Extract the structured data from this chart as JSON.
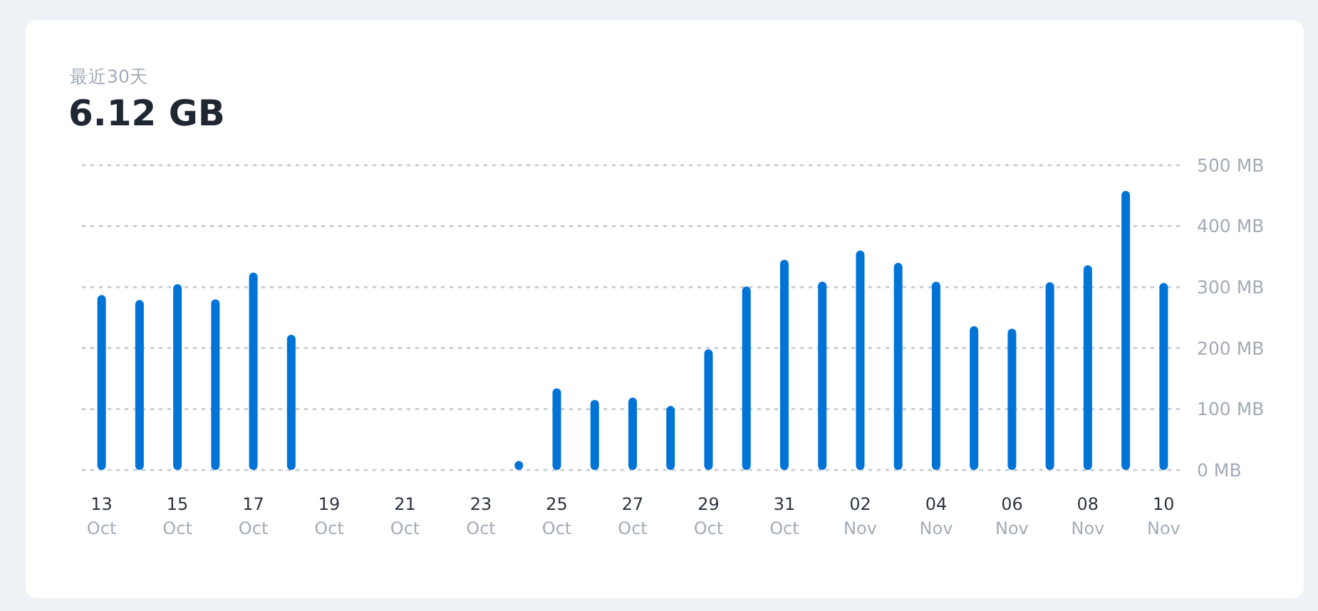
{
  "chart_data": {
    "type": "bar",
    "title": "6.12 GB",
    "subtitle": "最近30天",
    "categories": [
      "13 Oct",
      null,
      "15 Oct",
      null,
      "17 Oct",
      null,
      "19 Oct",
      null,
      "21 Oct",
      null,
      "23 Oct",
      null,
      "25 Oct",
      null,
      "27 Oct",
      null,
      "29 Oct",
      null,
      "31 Oct",
      null,
      "02 Nov",
      null,
      "04 Nov",
      null,
      "06 Nov",
      null,
      "08 Nov",
      null,
      "10 Nov"
    ],
    "values": [
      287,
      279,
      305,
      280,
      324,
      222,
      0,
      0,
      0,
      0,
      0,
      15,
      134,
      115,
      119,
      105,
      198,
      301,
      345,
      309,
      360,
      340,
      309,
      236,
      232,
      308,
      336,
      458,
      307
    ],
    "color": "#0073d6",
    "ylim": [
      0,
      500
    ],
    "yticks": [
      {
        "value": 0,
        "label": "0 MB"
      },
      {
        "value": 100,
        "label": "100 MB"
      },
      {
        "value": 200,
        "label": "200 MB"
      },
      {
        "value": 300,
        "label": "300 MB"
      },
      {
        "value": 400,
        "label": "400 MB"
      },
      {
        "value": 500,
        "label": "500 MB"
      }
    ],
    "grid": "y"
  }
}
